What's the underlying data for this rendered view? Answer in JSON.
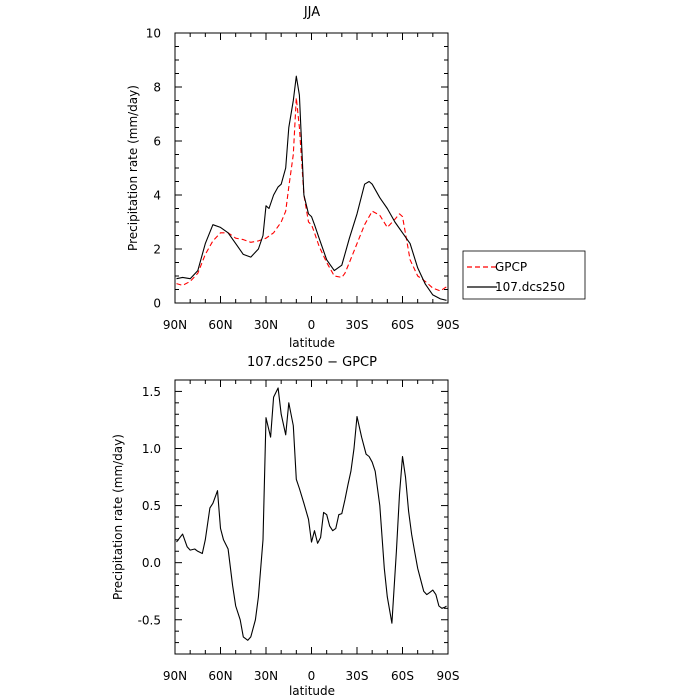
{
  "chart_data": [
    {
      "type": "line",
      "title": "JJA",
      "xlabel": "latitude",
      "ylabel": "Precipitation rate (mm/day)",
      "xlim": [
        90,
        -90
      ],
      "ylim": [
        0,
        10
      ],
      "x_ticks": [
        90,
        60,
        30,
        0,
        -30,
        -60,
        -90
      ],
      "x_tick_labels": [
        "90N",
        "60N",
        "30N",
        "0",
        "30S",
        "60S",
        "90S"
      ],
      "y_ticks": [
        0,
        2,
        4,
        6,
        8,
        10
      ],
      "y_tick_labels": [
        "0",
        "2",
        "4",
        "6",
        "8",
        "10"
      ],
      "legend_position": "outside-right",
      "series": [
        {
          "name": "GPCP",
          "color": "#ff0000",
          "style": "dashed",
          "x": [
            89,
            85,
            80,
            75,
            70,
            65,
            60,
            55,
            50,
            45,
            40,
            35,
            30,
            25,
            20,
            17,
            15,
            12,
            10,
            8,
            5,
            2,
            0,
            -2,
            -5,
            -10,
            -15,
            -20,
            -22,
            -25,
            -30,
            -35,
            -40,
            -45,
            -50,
            -55,
            -58,
            -60,
            -65,
            -70,
            -75,
            -80,
            -85,
            -89
          ],
          "values": [
            0.72,
            0.65,
            0.8,
            1.1,
            1.8,
            2.3,
            2.6,
            2.6,
            2.4,
            2.35,
            2.25,
            2.3,
            2.4,
            2.6,
            3.0,
            3.4,
            4.3,
            5.5,
            7.6,
            6.5,
            4.0,
            3.0,
            2.9,
            2.6,
            2.1,
            1.5,
            1.0,
            0.95,
            1.1,
            1.5,
            2.2,
            2.9,
            3.4,
            3.25,
            2.8,
            3.1,
            3.3,
            3.2,
            1.6,
            1.0,
            0.8,
            0.55,
            0.45,
            0.6
          ]
        },
        {
          "name": "107.dcs250",
          "color": "#000000",
          "style": "solid",
          "x": [
            89,
            85,
            80,
            75,
            70,
            65,
            60,
            55,
            50,
            45,
            40,
            35,
            32,
            30,
            28,
            25,
            22,
            20,
            17,
            15,
            12,
            10,
            8,
            5,
            2,
            0,
            -2,
            -5,
            -10,
            -15,
            -20,
            -25,
            -30,
            -35,
            -38,
            -40,
            -45,
            -50,
            -55,
            -60,
            -65,
            -70,
            -75,
            -80,
            -85,
            -89
          ],
          "values": [
            0.9,
            0.95,
            0.9,
            1.2,
            2.2,
            2.9,
            2.8,
            2.6,
            2.2,
            1.8,
            1.7,
            2.0,
            2.5,
            3.6,
            3.5,
            4.0,
            4.3,
            4.4,
            5.0,
            6.5,
            7.5,
            8.4,
            7.7,
            4.0,
            3.3,
            3.2,
            2.9,
            2.4,
            1.6,
            1.2,
            1.4,
            2.4,
            3.3,
            4.4,
            4.5,
            4.4,
            3.9,
            3.5,
            3.0,
            2.6,
            2.2,
            1.3,
            0.7,
            0.3,
            0.15,
            0.1
          ]
        }
      ]
    },
    {
      "type": "line",
      "title": "107.dcs250 − GPCP",
      "xlabel": "latitude",
      "ylabel": "Precipitation rate (mm/day)",
      "xlim": [
        90,
        -90
      ],
      "ylim": [
        -0.8,
        1.6
      ],
      "x_ticks": [
        90,
        60,
        30,
        0,
        -30,
        -60,
        -90
      ],
      "x_tick_labels": [
        "90N",
        "60N",
        "30N",
        "0",
        "30S",
        "60S",
        "90S"
      ],
      "y_ticks": [
        -0.5,
        0,
        0.5,
        1.0,
        1.5
      ],
      "y_tick_labels": [
        "-0.5",
        "0.0",
        "0.5",
        "1.0",
        "1.5"
      ],
      "series": [
        {
          "color": "#000000",
          "style": "solid",
          "x": [
            89,
            85,
            82,
            80,
            77,
            75,
            72,
            70,
            67,
            65,
            62,
            60,
            58,
            55,
            52,
            50,
            47,
            45,
            42,
            40,
            37,
            35,
            32,
            30,
            27,
            25,
            22,
            20,
            17,
            15,
            12,
            10,
            8,
            5,
            2,
            0,
            -2,
            -4,
            -6,
            -8,
            -10,
            -12,
            -14,
            -16,
            -18,
            -20,
            -22,
            -24,
            -26,
            -28,
            -30,
            -33,
            -36,
            -38,
            -40,
            -42,
            -45,
            -48,
            -50,
            -53,
            -56,
            -58,
            -60,
            -62,
            -64,
            -66,
            -68,
            -70,
            -72,
            -74,
            -76,
            -78,
            -80,
            -82,
            -84,
            -86,
            -88,
            -89
          ],
          "values": [
            0.18,
            0.25,
            0.14,
            0.11,
            0.12,
            0.1,
            0.08,
            0.2,
            0.48,
            0.52,
            0.63,
            0.3,
            0.2,
            0.12,
            -0.2,
            -0.38,
            -0.5,
            -0.65,
            -0.68,
            -0.65,
            -0.5,
            -0.3,
            0.2,
            1.27,
            1.1,
            1.45,
            1.53,
            1.3,
            1.12,
            1.4,
            1.2,
            0.73,
            0.65,
            0.52,
            0.38,
            0.18,
            0.28,
            0.17,
            0.22,
            0.44,
            0.42,
            0.32,
            0.28,
            0.3,
            0.42,
            0.43,
            0.55,
            0.68,
            0.8,
            1.0,
            1.28,
            1.1,
            0.95,
            0.93,
            0.88,
            0.8,
            0.5,
            -0.05,
            -0.3,
            -0.53,
            0.1,
            0.6,
            0.93,
            0.75,
            0.45,
            0.25,
            0.1,
            -0.05,
            -0.15,
            -0.25,
            -0.28,
            -0.26,
            -0.24,
            -0.28,
            -0.38,
            -0.4,
            -0.39,
            -0.38
          ]
        }
      ]
    }
  ]
}
